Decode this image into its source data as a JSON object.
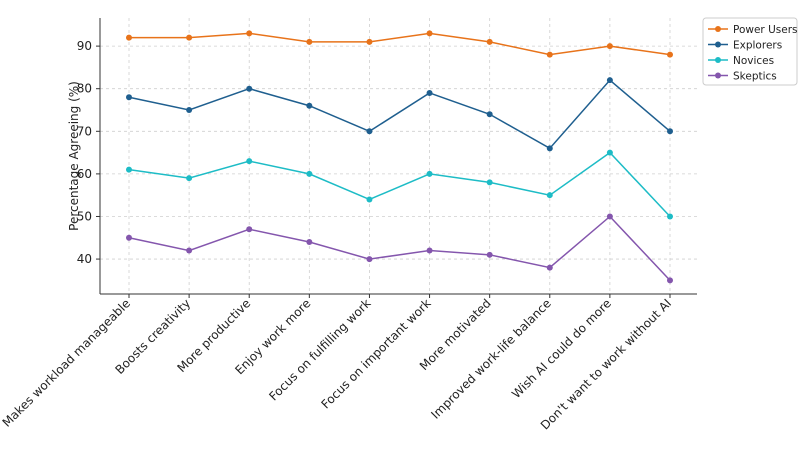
{
  "chart_data": {
    "type": "line",
    "title": "",
    "xlabel": "",
    "ylabel": "Percentage Agreeing (%)",
    "categories": [
      "Makes workload manageable",
      "Boosts creativity",
      "More productive",
      "Enjoy work more",
      "Focus on fulfilling work",
      "Focus on important work",
      "More motivated",
      "Improved work-life balance",
      "Wish AI could do more",
      "Don't want to work without AI"
    ],
    "ylim": [
      31.8,
      96.6
    ],
    "yticks": [
      40,
      50,
      60,
      70,
      80,
      90
    ],
    "grid": true,
    "legend_position": "top-right",
    "series": [
      {
        "name": "Power Users",
        "color": "#e8731a",
        "values": [
          92,
          92,
          93,
          91,
          91,
          93,
          91,
          88,
          90,
          88
        ]
      },
      {
        "name": "Explorers",
        "color": "#1f5f8f",
        "values": [
          78,
          75,
          80,
          76,
          70,
          79,
          74,
          66,
          82,
          70
        ]
      },
      {
        "name": "Novices",
        "color": "#1dbcc6",
        "values": [
          61,
          59,
          63,
          60,
          54,
          60,
          58,
          55,
          65,
          50
        ]
      },
      {
        "name": "Skeptics",
        "color": "#8456ad",
        "values": [
          45,
          42,
          47,
          44,
          40,
          42,
          41,
          38,
          50,
          35
        ]
      }
    ]
  }
}
